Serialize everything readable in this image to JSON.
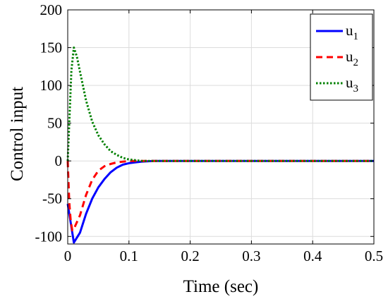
{
  "chart_data": {
    "type": "line",
    "xlabel": "Time (sec)",
    "ylabel": "Control input",
    "xlim": [
      0,
      0.5
    ],
    "ylim": [
      -110,
      200
    ],
    "xticks": [
      0,
      0.1,
      0.2,
      0.3,
      0.4,
      0.5
    ],
    "xtick_labels": [
      "0",
      "0.1",
      "0.2",
      "0.3",
      "0.4",
      "0.5"
    ],
    "yticks": [
      -100,
      -50,
      0,
      50,
      100,
      150,
      200
    ],
    "ytick_labels": [
      "-100",
      "-50",
      "0",
      "50",
      "100",
      "150",
      "200"
    ],
    "grid": true,
    "legend_position": "top-right",
    "series": [
      {
        "name": "u",
        "subscript": "1",
        "color": "#0000ff",
        "dash": "solid",
        "x": [
          0,
          0.01,
          0.02,
          0.03,
          0.04,
          0.05,
          0.06,
          0.07,
          0.08,
          0.09,
          0.1,
          0.11,
          0.12,
          0.14,
          0.16,
          0.2,
          0.3,
          0.4,
          0.5
        ],
        "y": [
          -57,
          -108,
          -95,
          -70,
          -50,
          -35,
          -24,
          -15,
          -9,
          -5,
          -3,
          -2,
          -1,
          0,
          0,
          0,
          0,
          0,
          0
        ]
      },
      {
        "name": "u",
        "subscript": "2",
        "color": "#ff0000",
        "dash": "dashed",
        "x": [
          0,
          0.0025,
          0.005,
          0.0075,
          0.01,
          0.02,
          0.03,
          0.04,
          0.05,
          0.06,
          0.07,
          0.08,
          0.09,
          0.1,
          0.12,
          0.14,
          0.2,
          0.3,
          0.4,
          0.5
        ],
        "y": [
          0,
          -55,
          -80,
          -92,
          -90,
          -72,
          -45,
          -25,
          -13,
          -7,
          -4,
          -2,
          -1,
          0,
          0,
          0,
          0,
          0,
          0,
          0
        ]
      },
      {
        "name": "u",
        "subscript": "3",
        "color": "#008000",
        "dash": "dotted",
        "x": [
          0,
          0.003,
          0.006,
          0.01,
          0.015,
          0.02,
          0.03,
          0.04,
          0.05,
          0.06,
          0.07,
          0.08,
          0.09,
          0.1,
          0.11,
          0.12,
          0.14,
          0.2,
          0.3,
          0.4,
          0.5
        ],
        "y": [
          0,
          60,
          120,
          150,
          138,
          118,
          80,
          52,
          34,
          22,
          13,
          8,
          4,
          2,
          1,
          0,
          0,
          0,
          0,
          0,
          0
        ]
      }
    ]
  }
}
